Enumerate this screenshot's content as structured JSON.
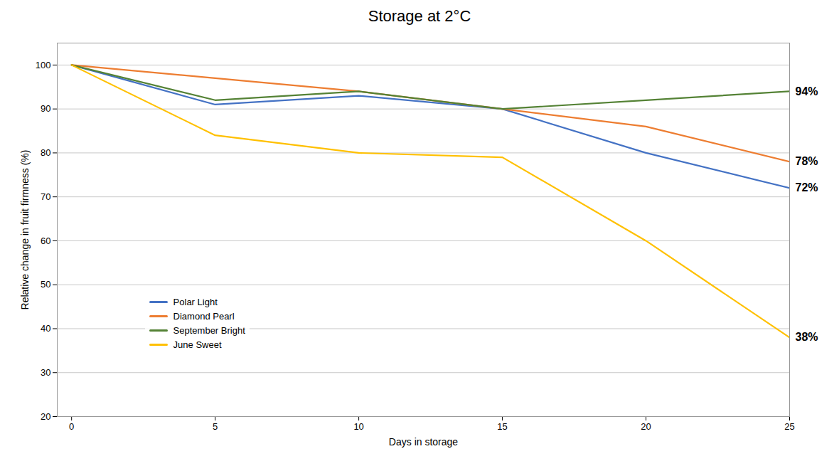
{
  "chart_data": {
    "type": "line",
    "title": "Storage at 2°C",
    "xlabel": "Days in storage",
    "ylabel": "Relative change in fruit firmness (%)",
    "x": [
      0,
      5,
      10,
      15,
      20,
      25
    ],
    "series": [
      {
        "name": "Polar Light",
        "color": "#4472C4",
        "values": [
          100,
          91,
          93,
          90,
          80,
          72
        ],
        "value_labels": [
          null,
          null,
          null,
          null,
          null,
          "72%"
        ]
      },
      {
        "name": "Diamond Pearl",
        "color": "#ED7D31",
        "values": [
          100,
          97,
          94,
          90,
          86,
          78
        ],
        "value_labels": [
          null,
          null,
          null,
          null,
          null,
          "78%"
        ]
      },
      {
        "name": "September Bright",
        "color": "#548235",
        "values": [
          100,
          92,
          94,
          90,
          92,
          94
        ],
        "value_labels": [
          null,
          null,
          null,
          null,
          null,
          "94%"
        ]
      },
      {
        "name": "June Sweet",
        "color": "#FFC000",
        "values": [
          100,
          84,
          80,
          79,
          60,
          38
        ],
        "value_labels": [
          null,
          null,
          null,
          null,
          null,
          "38%"
        ]
      }
    ],
    "xlim": [
      -0.5,
      25
    ],
    "xticks": [
      0,
      5,
      10,
      15,
      20,
      25
    ],
    "ylim": [
      20,
      105
    ],
    "yticks": [
      20,
      30,
      40,
      50,
      60,
      70,
      80,
      90,
      100
    ],
    "grid": true,
    "legend": "lower left"
  }
}
